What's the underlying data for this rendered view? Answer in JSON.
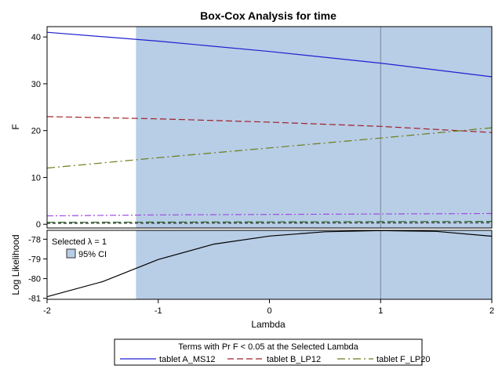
{
  "title": "Box-Cox Analysis for time",
  "chart_data": {
    "type": "line",
    "xlabel": "Lambda",
    "xlim": [
      -2,
      2
    ],
    "x_ticks": [
      -2,
      -1,
      0,
      1,
      2
    ],
    "selected_lambda": 1,
    "ci": [
      -1.2,
      2
    ],
    "ci_color": "#b8cde6",
    "top_panel": {
      "ylabel": "F",
      "ylim": [
        -0.8,
        42.2
      ],
      "y_ticks": [
        0,
        10,
        20,
        30,
        40
      ],
      "series": [
        {
          "name": "tablet A_MS12",
          "color": "#2020d0",
          "dash": "",
          "x": [
            -2,
            -1,
            0,
            1,
            2
          ],
          "values": [
            41.0,
            39.1,
            36.9,
            34.4,
            31.5
          ]
        },
        {
          "name": "tablet B_LP12",
          "color": "#a0202a",
          "dash": "8,4",
          "x": [
            -2,
            -1,
            0,
            1,
            2
          ],
          "values": [
            23.0,
            22.5,
            21.8,
            20.9,
            19.6
          ]
        },
        {
          "name": "tablet F_LP20",
          "color": "#6b7d1a",
          "dash": "10,4,2,4",
          "x": [
            -2,
            -1,
            0,
            1,
            2
          ],
          "values": [
            12.0,
            14.2,
            16.3,
            18.4,
            20.6
          ]
        },
        {
          "color": "#9b4fe0",
          "dash": "8,3,2,3",
          "x": [
            -2,
            -1,
            0,
            1,
            2
          ],
          "values": [
            1.8,
            2.0,
            2.1,
            2.2,
            2.3
          ]
        },
        {
          "color": "#2a6a2a",
          "dash": "10,4",
          "x": [
            -2,
            -1,
            0,
            1,
            2
          ],
          "values": [
            0.4,
            0.45,
            0.5,
            0.55,
            0.6
          ]
        },
        {
          "color": "#303030",
          "dash": "4,3",
          "x": [
            -2,
            -1,
            0,
            1,
            2
          ],
          "values": [
            0.2,
            0.22,
            0.25,
            0.28,
            0.3
          ]
        }
      ]
    },
    "bottom_panel": {
      "ylabel": "Log Likelihood",
      "ylim": [
        -81.05,
        -77.55
      ],
      "y_ticks": [
        -81,
        -80,
        -79,
        -78
      ],
      "series": [
        {
          "color": "#000000",
          "x": [
            -2,
            -1.5,
            -1,
            -0.5,
            0,
            0.5,
            1,
            1.5,
            2
          ],
          "values": [
            -80.92,
            -80.15,
            -79.03,
            -78.25,
            -77.84,
            -77.62,
            -77.56,
            -77.6,
            -77.85
          ]
        }
      ],
      "inset": {
        "selected_label": "Selected λ = 1",
        "ci_label": "95% CI"
      }
    },
    "legend": {
      "title": "Terms with Pr F < 0.05 at the Selected Lambda",
      "items": [
        "tablet A_MS12",
        "tablet B_LP12",
        "tablet F_LP20"
      ]
    }
  }
}
